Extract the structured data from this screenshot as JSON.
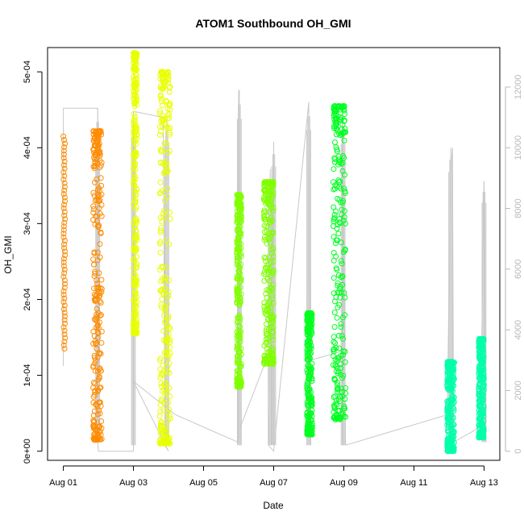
{
  "chart_data": {
    "type": "scatter",
    "title": "ATOM1 Southbound OH_GMI",
    "xlabel": "Date",
    "ylabel": "OH_GMI",
    "x_tick_labels": [
      "Aug 01",
      "Aug 03",
      "Aug 05",
      "Aug 07",
      "Aug 09",
      "Aug 11",
      "Aug 13"
    ],
    "x_tick_days": [
      1,
      3,
      5,
      7,
      9,
      11,
      13
    ],
    "xlim_days": [
      0.55,
      13.45
    ],
    "y_tick_labels": [
      "0e+00",
      "1e-04",
      "2e-04",
      "3e-04",
      "4e-04",
      "5e-04"
    ],
    "y_tick_values": [
      0,
      0.0001,
      0.0002,
      0.0003,
      0.0004,
      0.0005
    ],
    "ylim": [
      -1.2e-05,
      0.000532
    ],
    "y2_tick_labels": [
      "0",
      "2000",
      "4000",
      "6000",
      "8000",
      "10000",
      "12000"
    ],
    "y2_tick_values": [
      0,
      2000,
      4000,
      6000,
      8000,
      10000,
      12000
    ],
    "y2lim": [
      -300,
      13300
    ],
    "grid": false,
    "legend": "none",
    "altitude_color": "#c8c8c8",
    "flights": [
      {
        "day_start": 1.0,
        "day_end": 1.05,
        "oh_min": 0.000135,
        "oh_max": 0.000415,
        "color": "#ff8c00",
        "style": "sparse"
      },
      {
        "day_start": 1.85,
        "day_end": 2.1,
        "oh_min": 1.5e-05,
        "oh_max": 0.000422,
        "color": "#ff8c00",
        "style": "dense"
      },
      {
        "day_start": 3.0,
        "day_end": 3.1,
        "oh_min": 0.000155,
        "oh_max": 0.000525,
        "color": "#e8ff00",
        "style": "dense"
      },
      {
        "day_start": 3.75,
        "day_end": 4.05,
        "oh_min": 1e-05,
        "oh_max": 0.0005,
        "color": "#e8ff00",
        "style": "dense"
      },
      {
        "day_start": 5.95,
        "day_end": 6.08,
        "oh_min": 8.5e-05,
        "oh_max": 0.000338,
        "color": "#80ff00",
        "style": "dense"
      },
      {
        "day_start": 6.72,
        "day_end": 7.0,
        "oh_min": 0.000115,
        "oh_max": 0.000355,
        "color": "#80ff00",
        "style": "dense"
      },
      {
        "day_start": 7.95,
        "day_end": 8.1,
        "oh_min": 2.2e-05,
        "oh_max": 0.000182,
        "color": "#00ff20",
        "style": "dense"
      },
      {
        "day_start": 8.7,
        "day_end": 9.05,
        "oh_min": 4.2e-05,
        "oh_max": 0.000455,
        "color": "#00ff20",
        "style": "dense"
      },
      {
        "day_start": 11.95,
        "day_end": 12.15,
        "oh_min": 0.0,
        "oh_max": 0.000118,
        "color": "#00ffaa",
        "style": "dense"
      },
      {
        "day_start": 12.85,
        "day_end": 13.0,
        "oh_min": 1.8e-05,
        "oh_max": 0.000148,
        "color": "#00ffaa",
        "style": "dense"
      }
    ],
    "altitude_path": [
      [
        1.0,
        2800
      ],
      [
        1.0,
        11300
      ],
      [
        1.98,
        11300
      ],
      [
        1.98,
        300
      ],
      [
        2.0,
        0
      ],
      [
        3.0,
        0
      ],
      [
        3.0,
        11200
      ],
      [
        3.85,
        11000
      ],
      [
        3.9,
        200
      ],
      [
        4.0,
        0
      ],
      [
        3.0,
        2300
      ],
      [
        4.2,
        1200
      ],
      [
        5.98,
        300
      ],
      [
        6.0,
        11900
      ],
      [
        6.05,
        200
      ],
      [
        6.05,
        800
      ],
      [
        6.95,
        3500
      ],
      [
        7.0,
        9500
      ],
      [
        6.85,
        200
      ],
      [
        7.0,
        0
      ],
      [
        8.0,
        11500
      ],
      [
        8.05,
        200
      ],
      [
        8.05,
        3000
      ],
      [
        8.97,
        3300
      ],
      [
        8.97,
        200
      ],
      [
        8.95,
        11000
      ],
      [
        9.05,
        200
      ],
      [
        11.95,
        1200
      ],
      [
        12.05,
        9300
      ],
      [
        12.1,
        10000
      ],
      [
        12.13,
        300
      ],
      [
        12.9,
        800
      ],
      [
        13.0,
        8900
      ],
      [
        13.05,
        300
      ]
    ],
    "altitude_spikes": [
      [
        1.98,
        600,
        11300
      ],
      [
        3.0,
        200,
        11200
      ],
      [
        3.95,
        200,
        11000
      ],
      [
        6.02,
        200,
        11900
      ],
      [
        6.9,
        200,
        9300
      ],
      [
        7.0,
        200,
        10200
      ],
      [
        8.0,
        200,
        11500
      ],
      [
        8.98,
        200,
        11000
      ],
      [
        12.05,
        300,
        10000
      ],
      [
        13.0,
        300,
        8900
      ]
    ]
  }
}
